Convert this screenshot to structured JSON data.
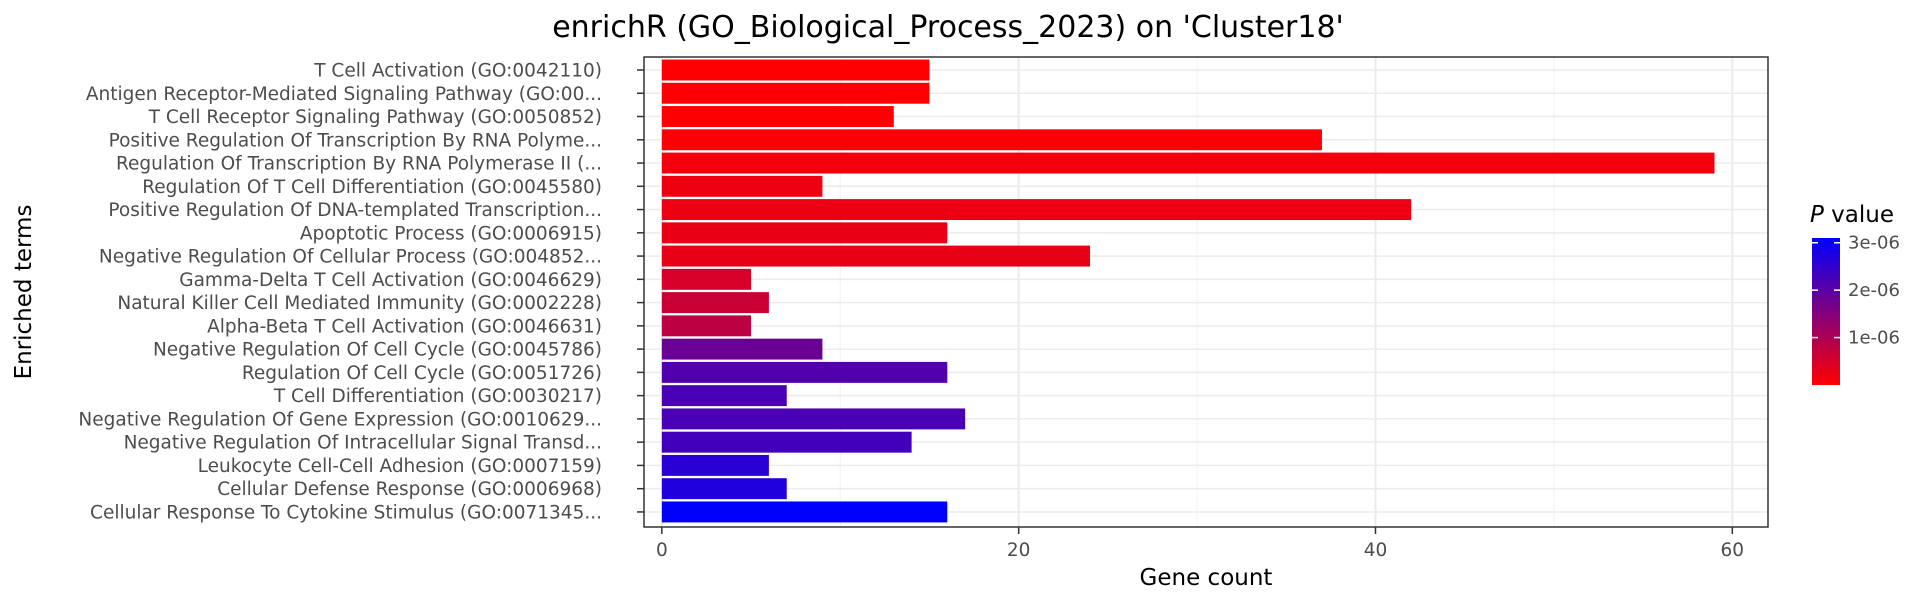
{
  "chart_data": {
    "type": "bar",
    "orientation": "horizontal",
    "title": "enrichR (GO_Biological_Process_2023) on 'Cluster18'",
    "xlabel": "Gene count",
    "ylabel": "Enriched terms",
    "xlim": [
      -1,
      62
    ],
    "x_ticks": [
      0,
      20,
      40,
      60
    ],
    "grid": true,
    "categories": [
      "T Cell Activation (GO:0042110)",
      "Antigen Receptor-Mediated Signaling Pathway (GO:00...",
      "T Cell Receptor Signaling Pathway (GO:0050852)",
      "Positive Regulation Of Transcription By RNA Polyme...",
      "Regulation Of Transcription By RNA Polymerase II (...",
      "Regulation Of T Cell Differentiation (GO:0045580)",
      "Positive Regulation Of DNA-templated Transcription...",
      "Apoptotic Process (GO:0006915)",
      "Negative Regulation Of Cellular Process (GO:004852...",
      "Gamma-Delta T Cell Activation (GO:0046629)",
      "Natural Killer Cell Mediated Immunity (GO:0002228)",
      "Alpha-Beta T Cell Activation (GO:0046631)",
      "Negative Regulation Of Cell Cycle (GO:0045786)",
      "Regulation Of Cell Cycle (GO:0051726)",
      "T Cell Differentiation (GO:0030217)",
      "Negative Regulation Of Gene Expression (GO:0010629...",
      "Negative Regulation Of Intracellular Signal Transd...",
      "Leukocyte Cell-Cell Adhesion (GO:0007159)",
      "Cellular Defense Response (GO:0006968)",
      "Cellular Response To Cytokine Stimulus (GO:0071345..."
    ],
    "values": [
      15,
      15,
      13,
      37,
      59,
      9,
      42,
      16,
      24,
      5,
      6,
      5,
      9,
      16,
      7,
      17,
      14,
      6,
      7,
      16
    ],
    "p_values": [
      1e-08,
      1e-08,
      2e-08,
      5e-08,
      1.5e-07,
      2e-07,
      2.2e-07,
      2.5e-07,
      2.8e-07,
      5e-07,
      6.5e-07,
      8e-07,
      1.8e-06,
      2.1e-06,
      2.2e-06,
      2.2e-06,
      2.3e-06,
      2.6e-06,
      2.7e-06,
      3.1e-06
    ],
    "legend": {
      "title_italic": "P",
      "title_rest": " value",
      "placement": "right",
      "ticks": [
        {
          "value": 3e-06,
          "label": "3e-06"
        },
        {
          "value": 2e-06,
          "label": "2e-06"
        },
        {
          "value": 1e-06,
          "label": "1e-06"
        }
      ],
      "range": [
        0,
        3.1e-06
      ],
      "color_low": "#ff0000",
      "color_high": "#0000ff"
    }
  }
}
